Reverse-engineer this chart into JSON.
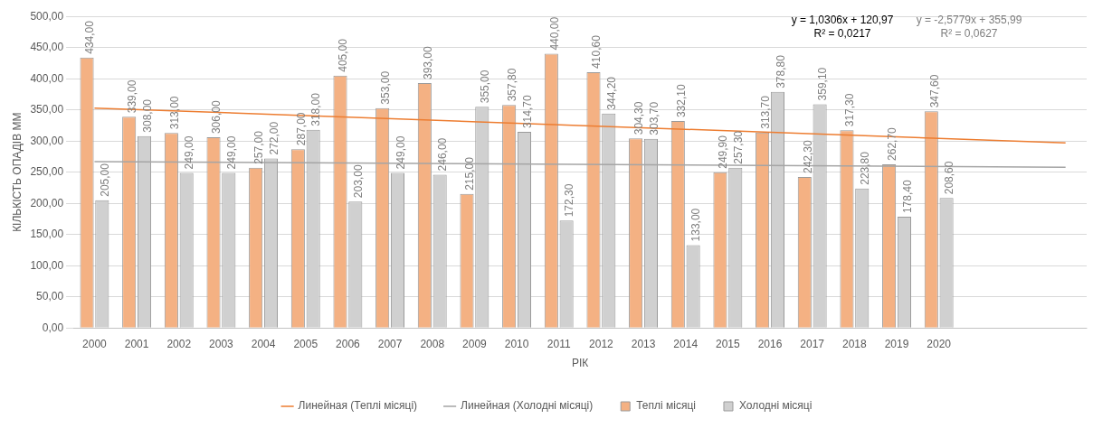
{
  "chart_data": {
    "type": "bar",
    "xlabel": "РІК",
    "ylabel": "КІЛЬКІСТЬ ОПАДІВ ММ",
    "categories": [
      "2000",
      "2001",
      "2002",
      "2003",
      "2004",
      "2005",
      "2006",
      "2007",
      "2008",
      "2009",
      "2010",
      "2011",
      "2012",
      "2013",
      "2014",
      "2015",
      "2016",
      "2017",
      "2018",
      "2019",
      "2020",
      null,
      null,
      null
    ],
    "series": [
      {
        "name": "Теплі місяці",
        "color": "#f4b183",
        "values": [
          434,
          339,
          313,
          306,
          257,
          287,
          405,
          353,
          393,
          215,
          357.8,
          440,
          410.6,
          304.3,
          332.1,
          249.9,
          313.7,
          242.3,
          317.3,
          262.7,
          347.6,
          null,
          null,
          null
        ],
        "value_labels": [
          "434,00",
          "339,00",
          "313,00",
          "306,00",
          "257,00",
          "287,00",
          "405,00",
          "353,00",
          "393,00",
          "215,00",
          "357,80",
          "440,00",
          "410,60",
          "304,30",
          "332,10",
          "249,90",
          "313,70",
          "242,30",
          "317,30",
          "262,70",
          "347,60",
          null,
          null,
          null
        ]
      },
      {
        "name": "Холодні місяці",
        "color": "#d0d0d0",
        "values": [
          205,
          308,
          249,
          249,
          272,
          318,
          203,
          249,
          246,
          355,
          314.7,
          172.3,
          344.2,
          303.7,
          133,
          257.3,
          378.8,
          359.1,
          223.8,
          178.4,
          208.6,
          null,
          null,
          null
        ],
        "value_labels": [
          "205,00",
          "308,00",
          "249,00",
          "249,00",
          "272,00",
          "318,00",
          "203,00",
          "249,00",
          "246,00",
          "355,00",
          "314,70",
          "172,30",
          "344,20",
          "303,70",
          "133,00",
          "257,30",
          "378,80",
          "359,10",
          "223,80",
          "178,40",
          "208,60",
          null,
          null,
          null
        ]
      },
      {
        "name": "Линейная (Теплі місяці)",
        "type": "line",
        "color": "#ed7d31",
        "values": [
          353,
          null,
          null,
          null,
          null,
          null,
          null,
          null,
          null,
          null,
          null,
          null,
          null,
          null,
          null,
          null,
          null,
          null,
          null,
          null,
          null,
          null,
          null,
          297
        ]
      },
      {
        "name": "Линейная (Холодні місяці)",
        "type": "line",
        "color": "#a5a5a5",
        "values": [
          267,
          null,
          null,
          null,
          null,
          null,
          null,
          null,
          null,
          null,
          null,
          null,
          null,
          null,
          null,
          null,
          null,
          null,
          null,
          null,
          null,
          null,
          null,
          258
        ]
      }
    ],
    "ylim": [
      0,
      500
    ],
    "yticks": [
      {
        "value": 0,
        "label": "0,00"
      },
      {
        "value": 50,
        "label": "50,00"
      },
      {
        "value": 100,
        "label": "100,00"
      },
      {
        "value": 150,
        "label": "150,00"
      },
      {
        "value": 200,
        "label": "200,00"
      },
      {
        "value": 250,
        "label": "250,00"
      },
      {
        "value": 300,
        "label": "300,00"
      },
      {
        "value": 350,
        "label": "350,00"
      },
      {
        "value": 400,
        "label": "400,00"
      },
      {
        "value": 450,
        "label": "450,00"
      },
      {
        "value": 500,
        "label": "500,00"
      }
    ],
    "grid": "y",
    "legend": "bottom",
    "marker": "none",
    "line_style": "solid",
    "annotations": [
      "y = 1,0306x + 120,97\nR² = 0,0217",
      "y = -2,5779x + 355,99\nR² = 0,0627"
    ]
  }
}
